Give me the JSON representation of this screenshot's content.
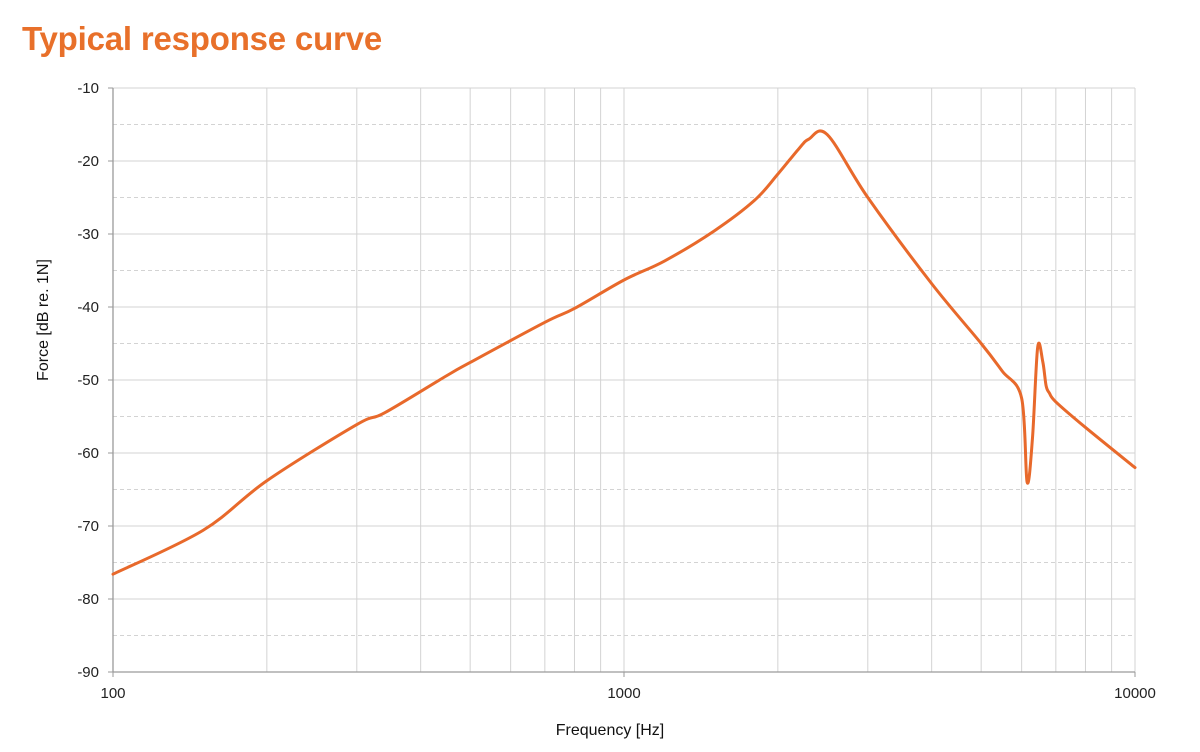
{
  "chart_data": {
    "type": "line",
    "title": "Typical response curve",
    "xlabel": "Frequency [Hz]",
    "ylabel": "Force [dB re. 1N]",
    "x_scale": "log",
    "xlim": [
      100,
      10000
    ],
    "ylim": [
      -90,
      -10
    ],
    "x_ticks": [
      100,
      1000,
      10000
    ],
    "x_tick_labels": [
      "100",
      "1000",
      "10000"
    ],
    "y_ticks": [
      -10,
      -20,
      -30,
      -40,
      -50,
      -60,
      -70,
      -80,
      -90
    ],
    "y_tick_labels": [
      "-10",
      "-20",
      "-30",
      "-40",
      "-50",
      "-60",
      "-70",
      "-80",
      "-90"
    ],
    "grid": true,
    "legend": "none",
    "line_color": "#e8692b",
    "series": [
      {
        "x": [
          100,
          150,
          200,
          300,
          340,
          450,
          500,
          700,
          800,
          1000,
          1200,
          1500,
          1800,
          2000,
          2200,
          2300,
          2500,
          3000,
          4000,
          5000,
          5500,
          6000,
          6150,
          6300,
          6450,
          6600,
          6700,
          6800,
          7000,
          8000,
          10000
        ],
        "y": [
          -76.6,
          -70.6,
          -63.8,
          -56.1,
          -54.5,
          -49.4,
          -47.6,
          -42.1,
          -40.2,
          -36.3,
          -33.7,
          -29.6,
          -25.4,
          -21.8,
          -18.3,
          -17.0,
          -16.4,
          -25.0,
          -36.8,
          -45.0,
          -48.8,
          -52.5,
          -64.0,
          -58.0,
          -45.5,
          -47.5,
          -50.8,
          -51.8,
          -53.0,
          -56.5,
          -62.0
        ]
      }
    ]
  }
}
